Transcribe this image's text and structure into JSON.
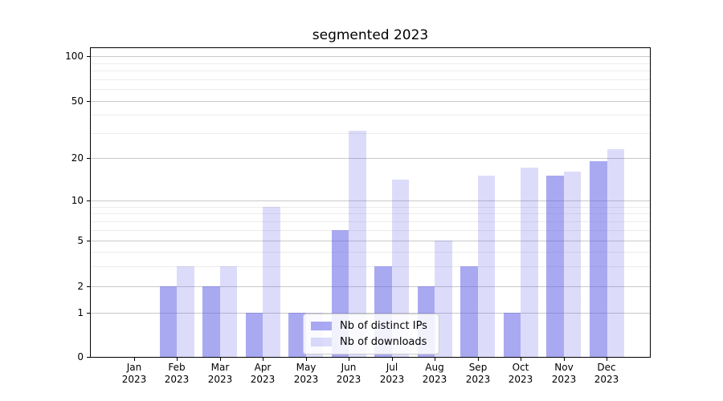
{
  "chart_data": {
    "type": "bar",
    "title": "segmented 2023",
    "months": [
      "Jan",
      "Feb",
      "Mar",
      "Apr",
      "May",
      "Jun",
      "Jul",
      "Aug",
      "Sep",
      "Oct",
      "Nov",
      "Dec"
    ],
    "year_label": "2023",
    "series": [
      {
        "name": "Nb of distinct IPs",
        "color": "rgba(90,90,230,0.52)",
        "values": [
          0,
          2,
          2,
          1,
          1,
          6,
          3,
          2,
          3,
          1,
          15,
          19
        ]
      },
      {
        "name": "Nb of downloads",
        "color": "rgba(90,90,230,0.21)",
        "values": [
          0,
          3,
          3,
          9,
          1,
          31,
          14,
          5,
          15,
          17,
          16,
          23
        ]
      }
    ],
    "y_axis": {
      "scale": "symlog",
      "ticks": [
        0,
        1,
        2,
        5,
        10,
        20,
        50,
        100
      ],
      "minor_gridlines": [
        3,
        4,
        6,
        7,
        8,
        9,
        30,
        40,
        60,
        70,
        80,
        90
      ],
      "range_top": 115
    },
    "grid": true,
    "legend_position": "lower center-left"
  },
  "colors": {
    "bar_base": "#5a5ae6",
    "major_grid": "#c9c9c9",
    "minor_grid": "#ececec",
    "spine": "#000000",
    "legend_border": "#cfcfcf"
  }
}
